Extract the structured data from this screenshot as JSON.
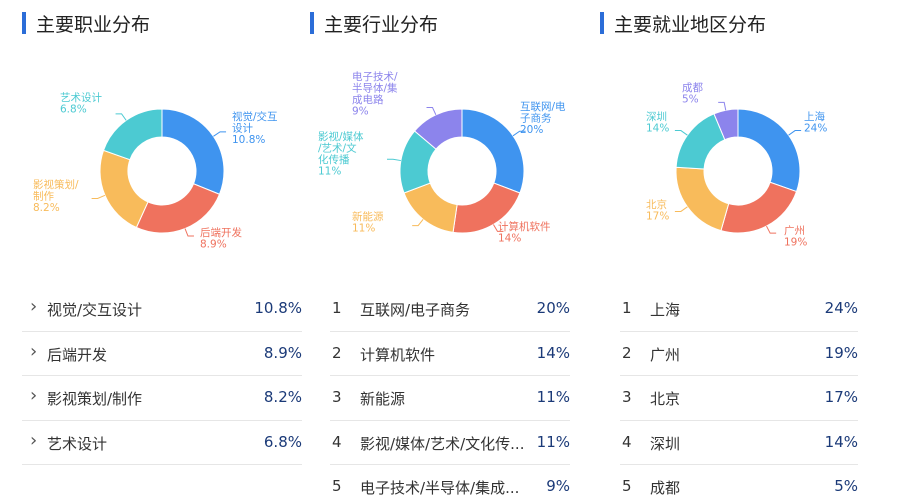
{
  "colors": {
    "blue": "#3f94ef",
    "red": "#ef725e",
    "orange": "#f8bb5b",
    "teal": "#4ccad2",
    "purple": "#8c84ec",
    "title_bar": "#2b6dd8",
    "value_text": "#1b3a78"
  },
  "list_icon": "chevron-right-icon",
  "panels": [
    {
      "title": "主要职业分布",
      "chart_data": {
        "type": "pie",
        "categories": [
          "视觉/交互设计",
          "后端开发",
          "影视策划/制作",
          "艺术设计"
        ],
        "values": [
          10.8,
          8.9,
          8.2,
          6.8
        ],
        "chart_labels": [
          [
            "视觉/交互",
            "设计",
            "10.8%"
          ],
          [
            "后端开发",
            "8.9%"
          ],
          [
            "影视策划/",
            "制作",
            "8.2%"
          ],
          [
            "艺术设计",
            "6.8%"
          ]
        ],
        "colors": [
          "#3f94ef",
          "#ef725e",
          "#f8bb5b",
          "#4ccad2"
        ]
      },
      "list": [
        {
          "label": "视觉/交互设计",
          "value": "10.8%"
        },
        {
          "label": "后端开发",
          "value": "8.9%"
        },
        {
          "label": "影视策划/制作",
          "value": "8.2%"
        },
        {
          "label": "艺术设计",
          "value": "6.8%"
        }
      ]
    },
    {
      "title": "主要行业分布",
      "chart_data": {
        "type": "pie",
        "categories": [
          "互联网/电子商务",
          "计算机软件",
          "新能源",
          "影视/媒体/艺术/文化传播",
          "电子技术/半导体/集成电路"
        ],
        "values": [
          20,
          14,
          11,
          11,
          9
        ],
        "chart_labels": [
          [
            "互联网/电",
            "子商务",
            "20%"
          ],
          [
            "计算机软件",
            "14%"
          ],
          [
            "新能源",
            "11%"
          ],
          [
            "影视/媒体",
            "/艺术/文",
            "化传播",
            "11%"
          ],
          [
            "电子技术/",
            "半导体/集",
            "成电路",
            "9%"
          ]
        ],
        "colors": [
          "#3f94ef",
          "#ef725e",
          "#f8bb5b",
          "#4ccad2",
          "#8c84ec"
        ]
      },
      "list": [
        {
          "rank": "1",
          "label": "互联网/电子商务",
          "value": "20%"
        },
        {
          "rank": "2",
          "label": "计算机软件",
          "value": "14%"
        },
        {
          "rank": "3",
          "label": "新能源",
          "value": "11%"
        },
        {
          "rank": "4",
          "label": "影视/媒体/艺术/文化传...",
          "value": "11%"
        },
        {
          "rank": "5",
          "label": "电子技术/半导体/集成...",
          "value": "9%"
        }
      ]
    },
    {
      "title": "主要就业地区分布",
      "chart_data": {
        "type": "pie",
        "categories": [
          "上海",
          "广州",
          "北京",
          "深圳",
          "成都"
        ],
        "values": [
          24,
          19,
          17,
          14,
          5
        ],
        "chart_labels": [
          [
            "上海",
            "24%"
          ],
          [
            "广州",
            "19%"
          ],
          [
            "北京",
            "17%"
          ],
          [
            "深圳",
            "14%"
          ],
          [
            "成都",
            "5%"
          ]
        ],
        "colors": [
          "#3f94ef",
          "#ef725e",
          "#f8bb5b",
          "#4ccad2",
          "#8c84ec"
        ]
      },
      "list": [
        {
          "rank": "1",
          "label": "上海",
          "value": "24%"
        },
        {
          "rank": "2",
          "label": "广州",
          "value": "19%"
        },
        {
          "rank": "3",
          "label": "北京",
          "value": "17%"
        },
        {
          "rank": "4",
          "label": "深圳",
          "value": "14%"
        },
        {
          "rank": "5",
          "label": "成都",
          "value": "5%"
        }
      ]
    }
  ]
}
